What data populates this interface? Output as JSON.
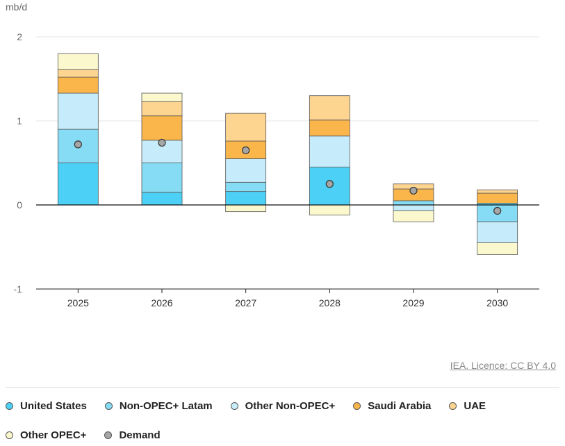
{
  "chart_data": {
    "type": "bar",
    "stacked": true,
    "unit_label": "mb/d",
    "categories": [
      "2025",
      "2026",
      "2027",
      "2028",
      "2029",
      "2030"
    ],
    "y_ticks": [
      "2",
      "1",
      "0",
      "-1"
    ],
    "ylim": [
      -1,
      2
    ],
    "series": [
      {
        "name": "United States",
        "color": "#4dd0f5",
        "values": [
          0.5,
          0.15,
          0.16,
          0.45,
          0.0,
          0.02
        ]
      },
      {
        "name": "Non-OPEC+ Latam",
        "color": "#85dcf4",
        "values": [
          0.4,
          0.35,
          0.11,
          0.0,
          0.05,
          -0.2
        ]
      },
      {
        "name": "Other Non-OPEC+",
        "color": "#c6ecfb",
        "values": [
          0.43,
          0.27,
          0.28,
          0.37,
          -0.07,
          -0.25
        ]
      },
      {
        "name": "Saudi Arabia",
        "color": "#fbb64b",
        "values": [
          0.19,
          0.29,
          0.21,
          0.19,
          0.14,
          0.12
        ]
      },
      {
        "name": "UAE",
        "color": "#fdd591",
        "values": [
          0.09,
          0.17,
          0.33,
          0.29,
          0.06,
          0.04
        ]
      },
      {
        "name": "Other OPEC+",
        "color": "#fcf8cd",
        "values": [
          0.19,
          0.1,
          -0.08,
          -0.12,
          -0.13,
          -0.14
        ]
      }
    ],
    "demand": {
      "name": "Demand",
      "color": "#a6a6a6",
      "values": [
        0.72,
        0.74,
        0.65,
        0.25,
        0.17,
        -0.07
      ]
    }
  },
  "licence_text": "IEA. Licence: CC BY 4.0",
  "legend": [
    {
      "label": "United States",
      "color": "#4dd0f5"
    },
    {
      "label": "Non-OPEC+ Latam",
      "color": "#85dcf4"
    },
    {
      "label": "Other Non-OPEC+",
      "color": "#c6ecfb"
    },
    {
      "label": "Saudi Arabia",
      "color": "#fbb64b"
    },
    {
      "label": "UAE",
      "color": "#fdd591"
    },
    {
      "label": "Other OPEC+",
      "color": "#fcf8cd"
    },
    {
      "label": "Demand",
      "color": "#a6a6a6"
    }
  ]
}
